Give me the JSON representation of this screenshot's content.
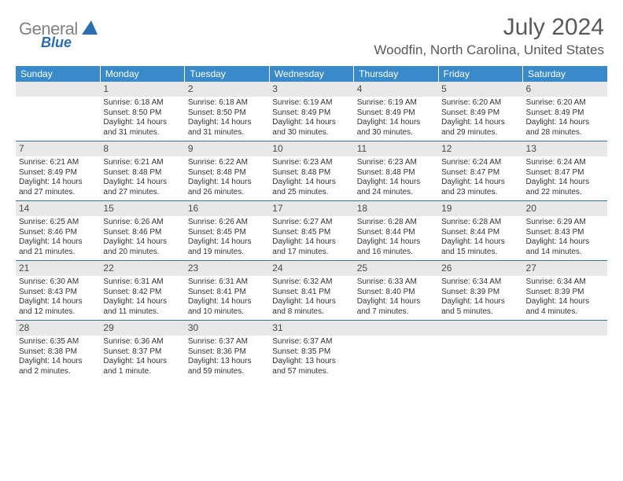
{
  "logo": {
    "text_gray": "General",
    "text_blue": "Blue"
  },
  "header": {
    "month": "July 2024",
    "location": "Woodfin, North Carolina, United States"
  },
  "colors": {
    "header_bg": "#3a89c9",
    "header_text": "#ffffff",
    "daynum_bg": "#e8e8e8",
    "text": "#333333",
    "rule": "#3a6ea5",
    "logo_gray": "#808285",
    "logo_blue": "#2a6db0"
  },
  "weekdays": [
    "Sunday",
    "Monday",
    "Tuesday",
    "Wednesday",
    "Thursday",
    "Friday",
    "Saturday"
  ],
  "weeks": [
    [
      null,
      {
        "n": "1",
        "sr": "6:18 AM",
        "ss": "8:50 PM",
        "dl": "14 hours and 31 minutes."
      },
      {
        "n": "2",
        "sr": "6:18 AM",
        "ss": "8:50 PM",
        "dl": "14 hours and 31 minutes."
      },
      {
        "n": "3",
        "sr": "6:19 AM",
        "ss": "8:49 PM",
        "dl": "14 hours and 30 minutes."
      },
      {
        "n": "4",
        "sr": "6:19 AM",
        "ss": "8:49 PM",
        "dl": "14 hours and 30 minutes."
      },
      {
        "n": "5",
        "sr": "6:20 AM",
        "ss": "8:49 PM",
        "dl": "14 hours and 29 minutes."
      },
      {
        "n": "6",
        "sr": "6:20 AM",
        "ss": "8:49 PM",
        "dl": "14 hours and 28 minutes."
      }
    ],
    [
      {
        "n": "7",
        "sr": "6:21 AM",
        "ss": "8:49 PM",
        "dl": "14 hours and 27 minutes."
      },
      {
        "n": "8",
        "sr": "6:21 AM",
        "ss": "8:48 PM",
        "dl": "14 hours and 27 minutes."
      },
      {
        "n": "9",
        "sr": "6:22 AM",
        "ss": "8:48 PM",
        "dl": "14 hours and 26 minutes."
      },
      {
        "n": "10",
        "sr": "6:23 AM",
        "ss": "8:48 PM",
        "dl": "14 hours and 25 minutes."
      },
      {
        "n": "11",
        "sr": "6:23 AM",
        "ss": "8:48 PM",
        "dl": "14 hours and 24 minutes."
      },
      {
        "n": "12",
        "sr": "6:24 AM",
        "ss": "8:47 PM",
        "dl": "14 hours and 23 minutes."
      },
      {
        "n": "13",
        "sr": "6:24 AM",
        "ss": "8:47 PM",
        "dl": "14 hours and 22 minutes."
      }
    ],
    [
      {
        "n": "14",
        "sr": "6:25 AM",
        "ss": "8:46 PM",
        "dl": "14 hours and 21 minutes."
      },
      {
        "n": "15",
        "sr": "6:26 AM",
        "ss": "8:46 PM",
        "dl": "14 hours and 20 minutes."
      },
      {
        "n": "16",
        "sr": "6:26 AM",
        "ss": "8:45 PM",
        "dl": "14 hours and 19 minutes."
      },
      {
        "n": "17",
        "sr": "6:27 AM",
        "ss": "8:45 PM",
        "dl": "14 hours and 17 minutes."
      },
      {
        "n": "18",
        "sr": "6:28 AM",
        "ss": "8:44 PM",
        "dl": "14 hours and 16 minutes."
      },
      {
        "n": "19",
        "sr": "6:28 AM",
        "ss": "8:44 PM",
        "dl": "14 hours and 15 minutes."
      },
      {
        "n": "20",
        "sr": "6:29 AM",
        "ss": "8:43 PM",
        "dl": "14 hours and 14 minutes."
      }
    ],
    [
      {
        "n": "21",
        "sr": "6:30 AM",
        "ss": "8:43 PM",
        "dl": "14 hours and 12 minutes."
      },
      {
        "n": "22",
        "sr": "6:31 AM",
        "ss": "8:42 PM",
        "dl": "14 hours and 11 minutes."
      },
      {
        "n": "23",
        "sr": "6:31 AM",
        "ss": "8:41 PM",
        "dl": "14 hours and 10 minutes."
      },
      {
        "n": "24",
        "sr": "6:32 AM",
        "ss": "8:41 PM",
        "dl": "14 hours and 8 minutes."
      },
      {
        "n": "25",
        "sr": "6:33 AM",
        "ss": "8:40 PM",
        "dl": "14 hours and 7 minutes."
      },
      {
        "n": "26",
        "sr": "6:34 AM",
        "ss": "8:39 PM",
        "dl": "14 hours and 5 minutes."
      },
      {
        "n": "27",
        "sr": "6:34 AM",
        "ss": "8:39 PM",
        "dl": "14 hours and 4 minutes."
      }
    ],
    [
      {
        "n": "28",
        "sr": "6:35 AM",
        "ss": "8:38 PM",
        "dl": "14 hours and 2 minutes."
      },
      {
        "n": "29",
        "sr": "6:36 AM",
        "ss": "8:37 PM",
        "dl": "14 hours and 1 minute."
      },
      {
        "n": "30",
        "sr": "6:37 AM",
        "ss": "8:36 PM",
        "dl": "13 hours and 59 minutes."
      },
      {
        "n": "31",
        "sr": "6:37 AM",
        "ss": "8:35 PM",
        "dl": "13 hours and 57 minutes."
      },
      null,
      null,
      null
    ]
  ],
  "labels": {
    "sunrise": "Sunrise:",
    "sunset": "Sunset:",
    "daylight": "Daylight:"
  }
}
